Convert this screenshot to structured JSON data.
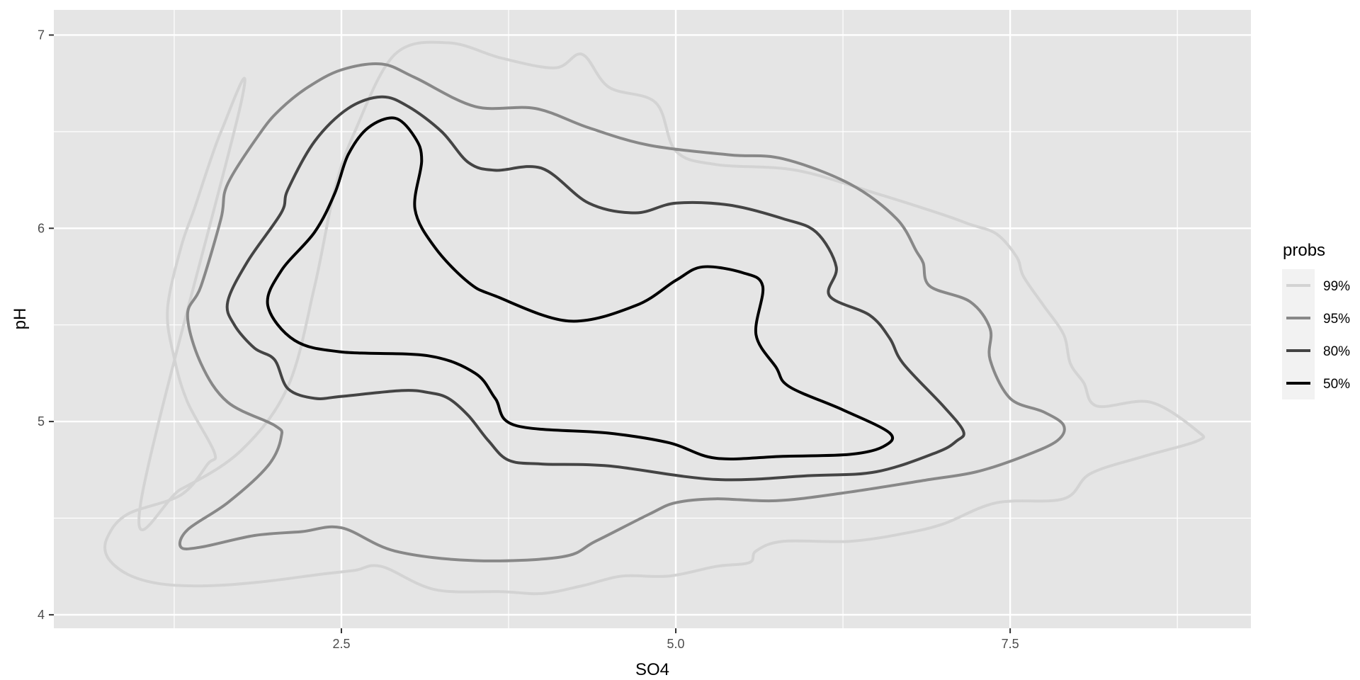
{
  "chart_data": {
    "type": "line",
    "chart_kind": "2D density contour (bivariate probability regions)",
    "xlabel": "SO4",
    "ylabel": "pH",
    "xlim": [
      0.35,
      9.3
    ],
    "ylim": [
      3.93,
      7.13
    ],
    "x_ticks": [
      2.5,
      5.0,
      7.5
    ],
    "x_tick_labels": [
      "2.5",
      "5.0",
      "7.5"
    ],
    "y_ticks": [
      4,
      5,
      6,
      7
    ],
    "y_tick_labels": [
      "4",
      "5",
      "6",
      "7"
    ],
    "grid": true,
    "legend": {
      "title": "probs",
      "position": "right"
    },
    "series": [
      {
        "name": "99%",
        "color": "#d3d3d3",
        "x": [
          1.0,
          1.3,
          1.75,
          2.1,
          2.3,
          2.45,
          2.6,
          2.9,
          3.3,
          3.7,
          4.1,
          4.3,
          4.5,
          4.85,
          5.0,
          5.3,
          5.9,
          6.5,
          7.0,
          7.2,
          7.4,
          7.55,
          7.6,
          7.75,
          7.9,
          7.95,
          8.05,
          8.15,
          8.55,
          8.9,
          8.9,
          8.5,
          8.1,
          7.9,
          7.4,
          7.0,
          6.7,
          6.3,
          5.8,
          5.6,
          5.55,
          5.3,
          4.95,
          4.6,
          4.3,
          4.0,
          3.7,
          3.2,
          2.8,
          2.6,
          2.35,
          1.9,
          1.5,
          1.15,
          0.9,
          0.75,
          0.75,
          0.9,
          1.3,
          1.5,
          1.55,
          1.35,
          1.25,
          1.2,
          1.3,
          1.4,
          1.6,
          1.75
        ],
        "y": [
          4.58,
          4.65,
          4.85,
          5.18,
          5.7,
          6.2,
          6.5,
          6.9,
          6.96,
          6.88,
          6.83,
          6.9,
          6.73,
          6.65,
          6.4,
          6.33,
          6.3,
          6.18,
          6.07,
          6.02,
          5.97,
          5.85,
          5.75,
          5.6,
          5.45,
          5.3,
          5.2,
          5.08,
          5.1,
          4.95,
          4.9,
          4.82,
          4.73,
          4.6,
          4.58,
          4.47,
          4.42,
          4.38,
          4.38,
          4.33,
          4.27,
          4.25,
          4.2,
          4.2,
          4.15,
          4.11,
          4.12,
          4.13,
          4.25,
          4.23,
          4.21,
          4.17,
          4.15,
          4.16,
          4.21,
          4.3,
          4.4,
          4.52,
          4.62,
          4.78,
          4.84,
          5.1,
          5.33,
          5.58,
          5.9,
          6.1,
          6.5,
          6.65
        ]
      },
      {
        "name": "95%",
        "color": "#888888",
        "x": [
          1.65,
          1.9,
          2.05,
          2.25,
          2.5,
          2.8,
          3.05,
          3.5,
          3.95,
          4.35,
          4.8,
          5.4,
          5.8,
          6.3,
          6.65,
          6.8,
          6.85,
          6.9,
          7.2,
          7.35,
          7.35,
          7.5,
          7.75,
          7.9,
          7.85,
          7.6,
          7.25,
          6.9,
          6.25,
          5.75,
          5.3,
          5.0,
          4.8,
          4.4,
          4.15,
          3.5,
          2.9,
          2.5,
          2.2,
          1.85,
          1.45,
          1.3,
          1.35,
          1.65,
          1.95,
          2.05,
          2.0,
          1.65,
          1.45,
          1.35,
          1.45,
          1.6
        ],
        "y": [
          6.23,
          6.5,
          6.62,
          6.73,
          6.82,
          6.85,
          6.78,
          6.63,
          6.62,
          6.52,
          6.43,
          6.38,
          6.36,
          6.23,
          6.05,
          5.88,
          5.82,
          5.7,
          5.62,
          5.48,
          5.32,
          5.12,
          5.05,
          4.98,
          4.9,
          4.82,
          4.74,
          4.7,
          4.63,
          4.59,
          4.6,
          4.58,
          4.52,
          4.38,
          4.3,
          4.28,
          4.33,
          4.45,
          4.43,
          4.41,
          4.35,
          4.35,
          4.44,
          4.58,
          4.77,
          4.92,
          4.98,
          5.1,
          5.3,
          5.55,
          5.7,
          6.05
        ]
      },
      {
        "name": "80%",
        "color": "#444444",
        "x": [
          2.1,
          2.3,
          2.55,
          2.8,
          3.0,
          3.25,
          3.45,
          3.65,
          4.0,
          4.35,
          4.7,
          5.0,
          5.4,
          5.8,
          6.05,
          6.2,
          6.15,
          6.45,
          6.6,
          6.7,
          7.0,
          7.15,
          7.1,
          6.95,
          6.5,
          6.0,
          5.3,
          4.5,
          4.0,
          3.75,
          3.6,
          3.45,
          3.3,
          3.15,
          2.95,
          2.5,
          2.3,
          2.1,
          2.0,
          1.85,
          1.7,
          1.65,
          1.8,
          2.05
        ],
        "y": [
          6.2,
          6.45,
          6.62,
          6.68,
          6.63,
          6.5,
          6.34,
          6.3,
          6.31,
          6.13,
          6.08,
          6.13,
          6.12,
          6.05,
          5.98,
          5.8,
          5.65,
          5.55,
          5.43,
          5.3,
          5.08,
          4.95,
          4.9,
          4.84,
          4.74,
          4.72,
          4.7,
          4.77,
          4.78,
          4.8,
          4.9,
          5.03,
          5.12,
          5.15,
          5.16,
          5.13,
          5.12,
          5.17,
          5.32,
          5.38,
          5.5,
          5.62,
          5.83,
          6.08
        ]
      },
      {
        "name": "50%",
        "color": "#000000",
        "x": [
          2.55,
          2.7,
          2.9,
          3.05,
          3.1,
          3.05,
          3.2,
          3.45,
          3.65,
          4.2,
          4.7,
          5.0,
          5.2,
          5.5,
          5.65,
          5.6,
          5.75,
          5.85,
          6.25,
          6.6,
          6.55,
          6.3,
          5.8,
          5.3,
          4.95,
          4.5,
          3.8,
          3.65,
          3.5,
          3.15,
          2.5,
          2.15,
          1.95,
          2.05,
          2.3,
          2.45
        ],
        "y": [
          6.38,
          6.52,
          6.57,
          6.47,
          6.35,
          6.1,
          5.9,
          5.72,
          5.65,
          5.52,
          5.6,
          5.73,
          5.8,
          5.77,
          5.7,
          5.45,
          5.28,
          5.18,
          5.06,
          4.94,
          4.87,
          4.83,
          4.82,
          4.81,
          4.89,
          4.94,
          4.98,
          5.12,
          5.25,
          5.34,
          5.36,
          5.42,
          5.6,
          5.78,
          5.98,
          6.18
        ]
      }
    ]
  }
}
